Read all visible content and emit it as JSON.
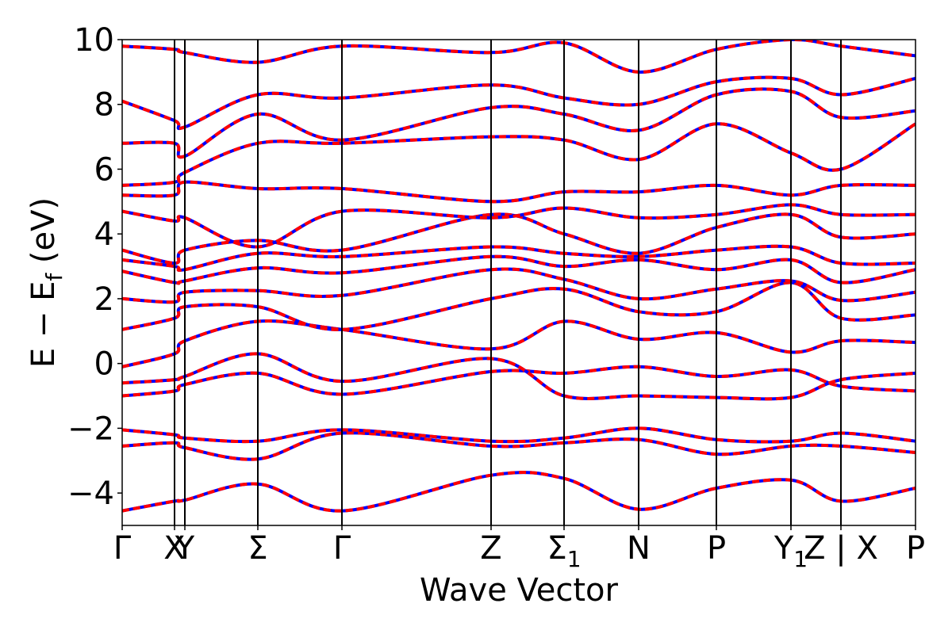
{
  "chart_data": {
    "type": "line",
    "title": "",
    "xlabel": "Wave Vector",
    "ylabel": "E − Eₑ (eV)",
    "ylabel_parts": {
      "main": "E − E",
      "sub": "f",
      "unit": " (eV)"
    },
    "ylim": [
      -5,
      10
    ],
    "yticks": [
      10,
      8,
      6,
      4,
      2,
      0,
      -2,
      -4
    ],
    "ytick_labels": [
      "10",
      "8",
      "6",
      "4",
      "2",
      "0",
      "−2",
      "−4"
    ],
    "xlim": [
      0,
      1
    ],
    "high_symmetry_points": [
      {
        "label": "Γ",
        "sub": "",
        "x": 0.0
      },
      {
        "label": "X",
        "sub": "",
        "x": 0.066
      },
      {
        "label": "Y",
        "sub": "",
        "x": 0.079
      },
      {
        "label": "Σ",
        "sub": "",
        "x": 0.171
      },
      {
        "label": "Γ",
        "sub": "",
        "x": 0.277
      },
      {
        "label": "Z",
        "sub": "",
        "x": 0.465
      },
      {
        "label": "Σ",
        "sub": "1",
        "x": 0.557
      },
      {
        "label": "N",
        "sub": "",
        "x": 0.651
      },
      {
        "label": "P",
        "sub": "",
        "x": 0.749
      },
      {
        "label": "Y",
        "sub": "1",
        "x": 0.843
      },
      {
        "label": "Z | X",
        "sub": "",
        "x": 0.906
      },
      {
        "label": "P",
        "sub": "",
        "x": 1.0
      }
    ],
    "grid": false,
    "line_colors": {
      "bands_a": "#ff0000",
      "bands_b": "#0000ff"
    },
    "series": [
      {
        "x": [
          0,
          0.066,
          0.079,
          0.171,
          0.277,
          0.465,
          0.557,
          0.651,
          0.749,
          0.843,
          0.906,
          1.0
        ],
        "y": [
          -4.55,
          -4.25,
          -4.22,
          -3.72,
          -4.55,
          -3.45,
          -3.55,
          -4.5,
          -3.85,
          -3.6,
          -4.25,
          -3.85
        ]
      },
      {
        "x": [
          0,
          0.066,
          0.079,
          0.171,
          0.277,
          0.465,
          0.557,
          0.651,
          0.749,
          0.843,
          0.906,
          1.0
        ],
        "y": [
          -2.55,
          -2.45,
          -2.6,
          -2.95,
          -2.15,
          -2.55,
          -2.45,
          -2.35,
          -2.8,
          -2.55,
          -2.55,
          -2.75
        ]
      },
      {
        "x": [
          0,
          0.066,
          0.079,
          0.171,
          0.277,
          0.465,
          0.557,
          0.651,
          0.749,
          0.843,
          0.906,
          1.0
        ],
        "y": [
          -2.05,
          -2.2,
          -2.3,
          -2.4,
          -2.05,
          -2.4,
          -2.3,
          -2.0,
          -2.35,
          -2.4,
          -2.15,
          -2.4
        ]
      },
      {
        "x": [
          0,
          0.066,
          0.079,
          0.171,
          0.277,
          0.465,
          0.557,
          0.651,
          0.749,
          0.843,
          0.906,
          1.0
        ],
        "y": [
          -1.0,
          -0.85,
          -0.65,
          -0.3,
          -0.95,
          -0.25,
          -0.3,
          -0.1,
          -0.4,
          -0.2,
          -0.7,
          -0.85
        ]
      },
      {
        "x": [
          0,
          0.066,
          0.079,
          0.171,
          0.277,
          0.465,
          0.557,
          0.651,
          0.749,
          0.843,
          0.906,
          1.0
        ],
        "y": [
          -0.6,
          -0.5,
          -0.4,
          0.3,
          -0.55,
          0.15,
          -1.0,
          -1.0,
          -1.05,
          -1.05,
          -0.5,
          -0.3
        ]
      },
      {
        "x": [
          0,
          0.066,
          0.079,
          0.171,
          0.277,
          0.465,
          0.557,
          0.651,
          0.749,
          0.843,
          0.906,
          1.0
        ],
        "y": [
          -0.1,
          0.3,
          0.7,
          1.3,
          1.05,
          0.45,
          1.3,
          0.75,
          0.95,
          0.35,
          0.7,
          0.65
        ]
      },
      {
        "x": [
          0,
          0.066,
          0.079,
          0.171,
          0.277,
          0.465,
          0.557,
          0.651,
          0.749,
          0.843,
          0.906,
          1.0
        ],
        "y": [
          1.05,
          1.4,
          1.75,
          1.75,
          1.05,
          2.0,
          2.3,
          1.6,
          1.6,
          2.5,
          1.4,
          1.5
        ]
      },
      {
        "x": [
          0,
          0.066,
          0.079,
          0.171,
          0.277,
          0.465,
          0.557,
          0.651,
          0.749,
          0.843,
          0.906,
          1.0
        ],
        "y": [
          2.0,
          1.9,
          2.2,
          2.25,
          2.1,
          2.9,
          2.6,
          2.0,
          2.3,
          2.55,
          1.95,
          2.2
        ]
      },
      {
        "x": [
          0,
          0.066,
          0.079,
          0.171,
          0.277,
          0.465,
          0.557,
          0.651,
          0.749,
          0.843,
          0.906,
          1.0
        ],
        "y": [
          2.85,
          2.5,
          2.55,
          2.95,
          2.8,
          3.3,
          3.0,
          3.2,
          2.9,
          3.2,
          2.5,
          2.9
        ]
      },
      {
        "x": [
          0,
          0.066,
          0.079,
          0.171,
          0.277,
          0.465,
          0.557,
          0.651,
          0.749,
          0.843,
          0.906,
          1.0
        ],
        "y": [
          3.2,
          3.0,
          2.9,
          3.4,
          3.3,
          3.6,
          3.4,
          3.3,
          3.5,
          3.6,
          3.1,
          3.1
        ]
      },
      {
        "x": [
          0,
          0.066,
          0.079,
          0.171,
          0.277,
          0.465,
          0.557,
          0.651,
          0.749,
          0.843,
          0.906,
          1.0
        ],
        "y": [
          3.5,
          3.1,
          3.5,
          3.8,
          3.5,
          4.6,
          4.0,
          3.4,
          4.2,
          4.6,
          3.9,
          4.0
        ]
      },
      {
        "x": [
          0,
          0.066,
          0.079,
          0.171,
          0.277,
          0.465,
          0.557,
          0.651,
          0.749,
          0.843,
          0.906,
          1.0
        ],
        "y": [
          4.7,
          4.4,
          4.5,
          3.6,
          4.7,
          4.5,
          4.8,
          4.5,
          4.6,
          4.9,
          4.6,
          4.6
        ]
      },
      {
        "x": [
          0,
          0.066,
          0.079,
          0.171,
          0.277,
          0.465,
          0.557,
          0.651,
          0.749,
          0.843,
          0.906,
          1.0
        ],
        "y": [
          5.2,
          5.2,
          5.6,
          5.4,
          5.4,
          5.0,
          5.3,
          5.3,
          5.5,
          5.2,
          5.5,
          5.5
        ]
      },
      {
        "x": [
          0,
          0.066,
          0.079,
          0.171,
          0.277,
          0.465,
          0.557,
          0.651,
          0.749,
          0.843,
          0.906,
          1.0
        ],
        "y": [
          5.5,
          5.6,
          5.9,
          6.8,
          6.8,
          7.0,
          6.9,
          6.3,
          7.4,
          6.5,
          6.0,
          7.4
        ]
      },
      {
        "x": [
          0,
          0.066,
          0.079,
          0.171,
          0.277,
          0.465,
          0.557,
          0.651,
          0.749,
          0.843,
          0.906,
          1.0
        ],
        "y": [
          6.8,
          6.8,
          6.4,
          7.7,
          6.9,
          7.9,
          7.7,
          7.2,
          8.3,
          8.4,
          7.6,
          7.8
        ]
      },
      {
        "x": [
          0,
          0.066,
          0.079,
          0.171,
          0.277,
          0.465,
          0.557,
          0.651,
          0.749,
          0.843,
          0.906,
          1.0
        ],
        "y": [
          8.1,
          7.5,
          7.3,
          8.3,
          8.2,
          8.6,
          8.2,
          8.0,
          8.7,
          8.8,
          8.3,
          8.8
        ]
      },
      {
        "x": [
          0,
          0.066,
          0.079,
          0.171,
          0.277,
          0.465,
          0.557,
          0.651,
          0.749,
          0.843,
          0.906,
          1.0
        ],
        "y": [
          9.8,
          9.7,
          9.6,
          9.3,
          9.8,
          9.6,
          9.9,
          9.0,
          9.7,
          10.0,
          9.8,
          9.5
        ]
      }
    ]
  }
}
